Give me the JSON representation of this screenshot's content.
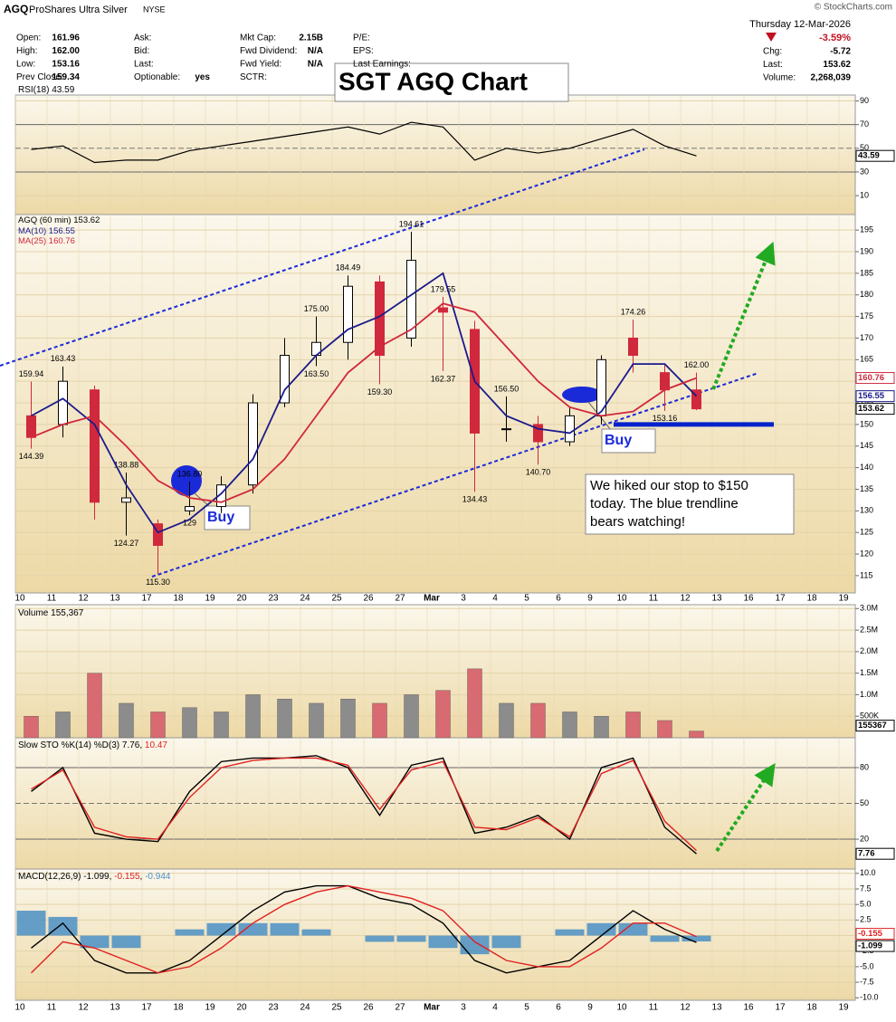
{
  "header": {
    "symbol": "AGQ",
    "name": "ProShares Ultra Silver",
    "exchange": "NYSE",
    "copyright": "© StockCharts.com",
    "date": "Thursday  12-Mar-2026",
    "change_pct": "-3.59%",
    "col1": [
      {
        "label": "Open:",
        "value": "161.96"
      },
      {
        "label": "High:",
        "value": "162.00"
      },
      {
        "label": "Low:",
        "value": "153.16"
      },
      {
        "label": "Prev Close:",
        "value": "159.34"
      }
    ],
    "col2": [
      {
        "label": "Ask:"
      },
      {
        "label": "Bid:"
      },
      {
        "label": "Last:"
      },
      {
        "label": "Optionable:",
        "value": "yes"
      }
    ],
    "col3": [
      {
        "label": "Mkt Cap:",
        "value": "2.15B"
      },
      {
        "label": "Fwd Dividend:",
        "value": "N/A"
      },
      {
        "label": "Fwd Yield:",
        "value": "N/A"
      },
      {
        "label": "SCTR:"
      }
    ],
    "col4": [
      {
        "label": "P/E:"
      },
      {
        "label": "EPS:"
      },
      {
        "label": "Last Earnings:"
      }
    ],
    "right": [
      {
        "label": "Chg:",
        "value": "-5.72"
      },
      {
        "label": "Last:",
        "value": "153.62"
      },
      {
        "label": "Volume:",
        "value": "2,268,039"
      }
    ]
  },
  "chart_data": [
    {
      "type": "line",
      "series": [
        {
          "name": "RSI(18)",
          "color": "#000000",
          "values": [
            49,
            52,
            38,
            40,
            40,
            48,
            52,
            56,
            60,
            64,
            68,
            62,
            72,
            68,
            40,
            50,
            46,
            50,
            58,
            66,
            52,
            43.59,
            null,
            null,
            null,
            null,
            null
          ]
        }
      ],
      "ylim": [
        -6,
        95
      ],
      "yticks": [
        90,
        70,
        50,
        30,
        10
      ]
    },
    {
      "type": "candlestick",
      "title": "SGT AGQ Chart",
      "series_label": "AGQ (60 min)",
      "categories": [
        "10",
        "11",
        "12",
        "13",
        "17",
        "18",
        "19",
        "20",
        "23",
        "24",
        "25",
        "26",
        "27",
        "Mar",
        "3",
        "4",
        "5",
        "6",
        "9",
        "10",
        "11",
        "12",
        "13",
        "16",
        "17",
        "18",
        "19"
      ],
      "open": [
        152,
        150,
        158,
        132,
        127,
        130,
        131,
        136,
        155,
        166,
        169,
        183,
        170,
        177,
        172,
        149,
        150,
        146,
        152,
        170,
        162,
        158,
        null,
        null,
        null,
        null,
        null
      ],
      "high": [
        159.94,
        163.43,
        159,
        138.88,
        128,
        136.8,
        138,
        157,
        170,
        175,
        184.49,
        184.5,
        194.61,
        179.55,
        174,
        156.5,
        152,
        154,
        166,
        174.26,
        164,
        162,
        null,
        null,
        null,
        null,
        null
      ],
      "low": [
        144.39,
        147,
        128,
        124.27,
        115.3,
        129,
        129.5,
        134,
        154,
        163.5,
        165,
        159.3,
        168,
        162.37,
        134.43,
        146,
        140.7,
        145,
        150,
        162,
        153.16,
        153.3,
        null,
        null,
        null,
        null,
        null
      ],
      "close": [
        147,
        160,
        132,
        133,
        122,
        131,
        136,
        155,
        166,
        169,
        182,
        166,
        188,
        176,
        148,
        149,
        146,
        152,
        165,
        166,
        158,
        153.62,
        null,
        null,
        null,
        null,
        null
      ],
      "high_labels": [
        "159.94",
        "163.43",
        null,
        "138.88",
        null,
        "136.80",
        null,
        null,
        null,
        "175.00",
        "184.49",
        null,
        "194.61",
        "179.55",
        null,
        "156.50",
        null,
        null,
        null,
        "174.26",
        null,
        "162.00",
        null,
        null,
        null,
        null,
        null
      ],
      "low_labels": [
        "144.39",
        null,
        null,
        "124.27",
        "115.30",
        "129",
        null,
        null,
        null,
        "163.50",
        null,
        "159.30",
        null,
        "162.37",
        "134.43",
        null,
        "140.70",
        null,
        null,
        null,
        "153.16",
        null,
        null,
        null,
        null,
        null,
        null
      ],
      "up_color": "#000000",
      "down_color": "#d0283c",
      "series": [
        {
          "name": "MA(10)",
          "color": "#1a1a8c",
          "values": [
            152,
            156,
            150,
            136,
            125,
            128,
            134,
            142,
            158,
            166,
            172,
            175,
            180,
            185,
            160,
            152,
            149,
            148,
            153,
            164,
            164,
            156.55,
            null,
            null,
            null,
            null,
            null
          ]
        },
        {
          "name": "MA(25)",
          "color": "#d0283c",
          "values": [
            147,
            150,
            152,
            145,
            137,
            133,
            132,
            135,
            142,
            152,
            162,
            168,
            172,
            178,
            176,
            168,
            160,
            154,
            152,
            153,
            158,
            160.76,
            null,
            null,
            null,
            null,
            null
          ]
        }
      ],
      "ylim": [
        111,
        198.6
      ],
      "yticks": [
        195,
        190,
        185,
        180,
        175,
        170,
        165,
        160,
        155,
        150,
        145,
        140,
        135,
        130,
        125,
        120,
        115
      ],
      "stop_line": 150,
      "stop_color": "#0022cc",
      "annotations": {
        "buy": [
          "Buy",
          "Buy"
        ],
        "note": [
          "We hiked our stop to $150",
          "today.  The blue trendline",
          "bears watching!"
        ]
      }
    },
    {
      "type": "bar",
      "series": [
        {
          "name": "Volume",
          "values": [
            500000,
            600000,
            1500000,
            800000,
            600000,
            700000,
            600000,
            1000000,
            900000,
            800000,
            900000,
            800000,
            1000000,
            1100000,
            1600000,
            800000,
            800000,
            600000,
            500000,
            600000,
            400000,
            155367,
            null,
            null,
            null,
            null,
            null
          ]
        }
      ],
      "last_label": "155,367",
      "up_color": "#8c8c8c",
      "down_color": "#d86a72",
      "ylim": [
        0,
        3090000
      ],
      "yticks": [
        {
          "value": 3000000,
          "label": "3.0M"
        },
        {
          "value": 2500000,
          "label": "2.5M"
        },
        {
          "value": 2000000,
          "label": "2.0M"
        },
        {
          "value": 1500000,
          "label": "1.5M"
        },
        {
          "value": 1000000,
          "label": "1.0M"
        },
        {
          "value": 500000,
          "label": "500K"
        }
      ]
    },
    {
      "type": "line",
      "title": "Slow STO",
      "separator": ",",
      "series": [
        {
          "name": "%K(14)",
          "color": "#000000",
          "values": [
            60,
            80,
            25,
            20,
            18,
            60,
            85,
            88,
            88,
            90,
            80,
            40,
            82,
            88,
            25,
            30,
            40,
            20,
            80,
            88,
            30,
            7.76,
            null,
            null,
            null,
            null,
            null
          ]
        },
        {
          "name": "%D(3)",
          "color": "#e02020",
          "values": [
            62,
            78,
            30,
            22,
            20,
            55,
            80,
            86,
            88,
            88,
            82,
            45,
            78,
            85,
            30,
            28,
            38,
            22,
            75,
            86,
            35,
            10.47,
            null,
            null,
            null,
            null,
            null
          ]
        }
      ],
      "ylim": [
        -5,
        105
      ],
      "yticks": [
        80,
        50,
        20
      ]
    },
    {
      "type": "macd",
      "separator": ",",
      "categories": [
        "10",
        "11",
        "12",
        "13",
        "17",
        "18",
        "19",
        "20",
        "23",
        "24",
        "25",
        "26",
        "27",
        "Mar",
        "3",
        "4",
        "5",
        "6",
        "9",
        "10",
        "11",
        "12",
        "13",
        "16",
        "17",
        "18",
        "19"
      ],
      "series": [
        {
          "name": "MACD(12,26,9)",
          "color": "#000000",
          "values": [
            -2,
            2,
            -4,
            -6,
            -6,
            -4,
            0,
            4,
            7,
            8,
            8,
            6,
            5,
            2,
            -4,
            -6,
            -5,
            -4,
            0,
            4,
            1,
            -1.099,
            null,
            null,
            null,
            null,
            null
          ]
        },
        {
          "color": "#e02020",
          "values": [
            -6,
            -1,
            -2,
            -4,
            -6,
            -5,
            -2,
            2,
            5,
            7,
            8,
            7,
            6,
            4,
            -1,
            -4,
            -5,
            -5,
            -2,
            2,
            2,
            -0.155,
            null,
            null,
            null,
            null,
            null
          ]
        },
        {
          "color": "#4a8fc4",
          "kind": "histogram",
          "values": [
            4,
            3,
            -2,
            -2,
            0,
            1,
            2,
            2,
            2,
            1,
            0,
            -1,
            -1,
            -2,
            -3,
            -2,
            0,
            1,
            2,
            2,
            -1,
            -0.944,
            null,
            null,
            null,
            null,
            null
          ]
        }
      ],
      "ylim": [
        -10.4,
        10.7
      ],
      "yticks": [
        {
          "value": 10,
          "label": "10.0"
        },
        7.5,
        {
          "value": 5,
          "label": "5.0"
        },
        2.5,
        0,
        -2.5,
        {
          "value": -5,
          "label": "-5.0"
        },
        -7.5,
        {
          "value": -10,
          "label": "-10.0"
        }
      ]
    }
  ]
}
